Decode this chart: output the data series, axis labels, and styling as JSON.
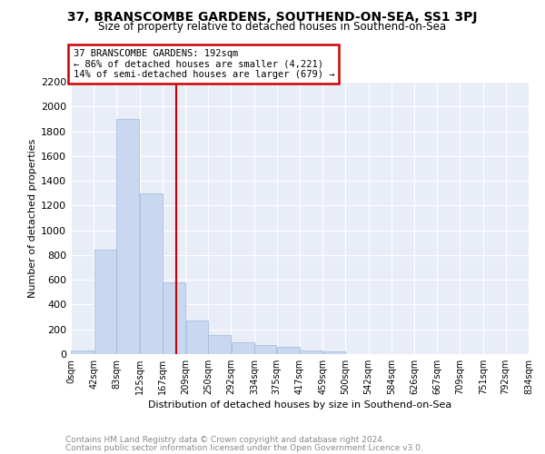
{
  "title": "37, BRANSCOMBE GARDENS, SOUTHEND-ON-SEA, SS1 3PJ",
  "subtitle": "Size of property relative to detached houses in Southend-on-Sea",
  "xlabel": "Distribution of detached houses by size in Southend-on-Sea",
  "ylabel": "Number of detached properties",
  "footnote1": "Contains HM Land Registry data © Crown copyright and database right 2024.",
  "footnote2": "Contains public sector information licensed under the Open Government Licence v3.0.",
  "annotation_line1": "37 BRANSCOMBE GARDENS: 192sqm",
  "annotation_line2": "← 86% of detached houses are smaller (4,221)",
  "annotation_line3": "14% of semi-detached houses are larger (679) →",
  "property_size": 192,
  "bar_face_color": "#c8d8f0",
  "bar_edge_color": "#a0b8d8",
  "red_line_color": "#cc0000",
  "annotation_box_color": "#cc0000",
  "background_color": "#e8edf8",
  "grid_color": "#ffffff",
  "bin_edges": [
    0,
    42,
    83,
    125,
    167,
    209,
    250,
    292,
    334,
    375,
    417,
    459,
    500,
    542,
    584,
    626,
    667,
    709,
    751,
    792,
    834
  ],
  "bin_labels": [
    "0sqm",
    "42sqm",
    "83sqm",
    "125sqm",
    "167sqm",
    "209sqm",
    "250sqm",
    "292sqm",
    "334sqm",
    "375sqm",
    "417sqm",
    "459sqm",
    "500sqm",
    "542sqm",
    "584sqm",
    "626sqm",
    "667sqm",
    "709sqm",
    "751sqm",
    "792sqm",
    "834sqm"
  ],
  "bar_heights": [
    28,
    840,
    1900,
    1300,
    580,
    270,
    155,
    95,
    75,
    60,
    30,
    20,
    0,
    0,
    0,
    0,
    0,
    0,
    0,
    0
  ],
  "ylim": [
    0,
    2200
  ],
  "yticks": [
    0,
    200,
    400,
    600,
    800,
    1000,
    1200,
    1400,
    1600,
    1800,
    2000,
    2200
  ]
}
